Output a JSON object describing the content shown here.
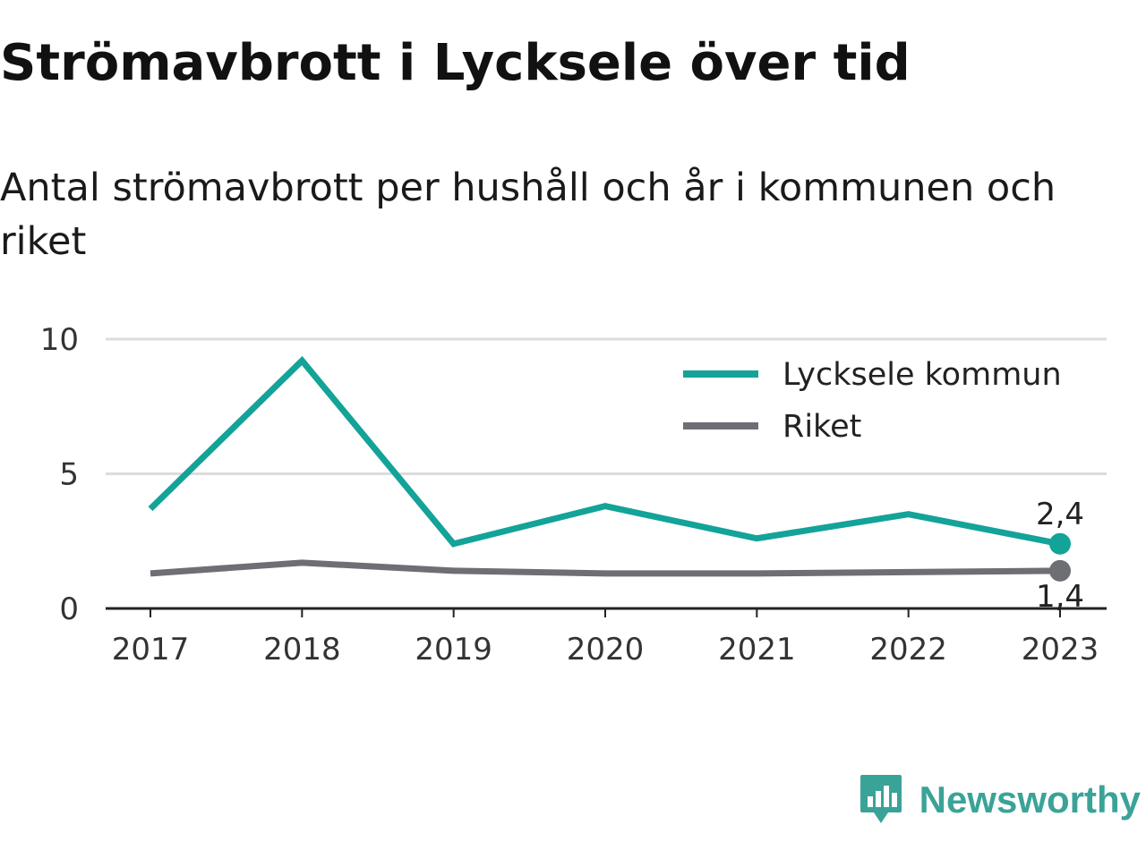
{
  "title": "Strömavbrott i Lycksele över tid",
  "subtitle": "Antal strömavbrott per hushåll och år i kommunen och riket",
  "brand": {
    "name": "Newsworthy",
    "icon": "newsworthy-logo-icon",
    "color": "#3aa398"
  },
  "chart_data": {
    "type": "line",
    "x": [
      "2017",
      "2018",
      "2019",
      "2020",
      "2021",
      "2022",
      "2023"
    ],
    "ylim": [
      0,
      10
    ],
    "yticks": [
      "0",
      "5",
      "10"
    ],
    "grid": true,
    "legend_position": "top-right",
    "series": [
      {
        "name": "Lycksele kommun",
        "color": "#13a398",
        "values": [
          3.7,
          9.2,
          2.4,
          3.8,
          2.6,
          3.5,
          2.4
        ],
        "end_label": "2,4"
      },
      {
        "name": "Riket",
        "color": "#6e6e75",
        "values": [
          1.3,
          1.7,
          1.4,
          1.3,
          1.3,
          1.35,
          1.4
        ],
        "end_label": "1,4"
      }
    ]
  }
}
